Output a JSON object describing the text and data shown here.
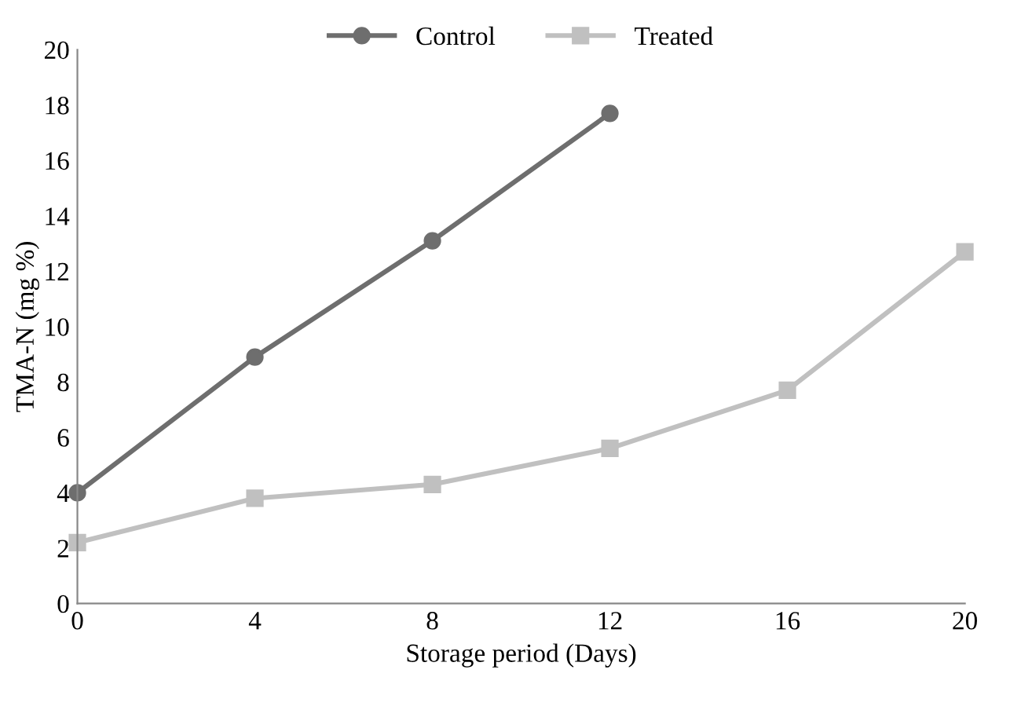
{
  "chart_data": {
    "type": "line",
    "xlabel": "Storage period (Days)",
    "ylabel": "TMA-N (mg %)",
    "xlim": [
      0,
      20
    ],
    "xticks": [
      0,
      4,
      8,
      12,
      16,
      20
    ],
    "ylim": [
      0,
      20
    ],
    "yticks": [
      0,
      2,
      4,
      6,
      8,
      10,
      12,
      14,
      16,
      18,
      20
    ],
    "grid": false,
    "legend": "top",
    "line_style": "solid",
    "series": [
      {
        "name": "Control",
        "color": "#6e6e6e",
        "marker": "circle",
        "x": [
          0,
          4,
          8,
          12
        ],
        "values": [
          4.0,
          8.9,
          13.1,
          17.7
        ]
      },
      {
        "name": "Treated",
        "color": "#c0c0c0",
        "marker": "square",
        "x": [
          0,
          4,
          8,
          12,
          16,
          20
        ],
        "values": [
          2.2,
          3.8,
          4.3,
          5.6,
          7.7,
          12.7
        ]
      }
    ]
  }
}
